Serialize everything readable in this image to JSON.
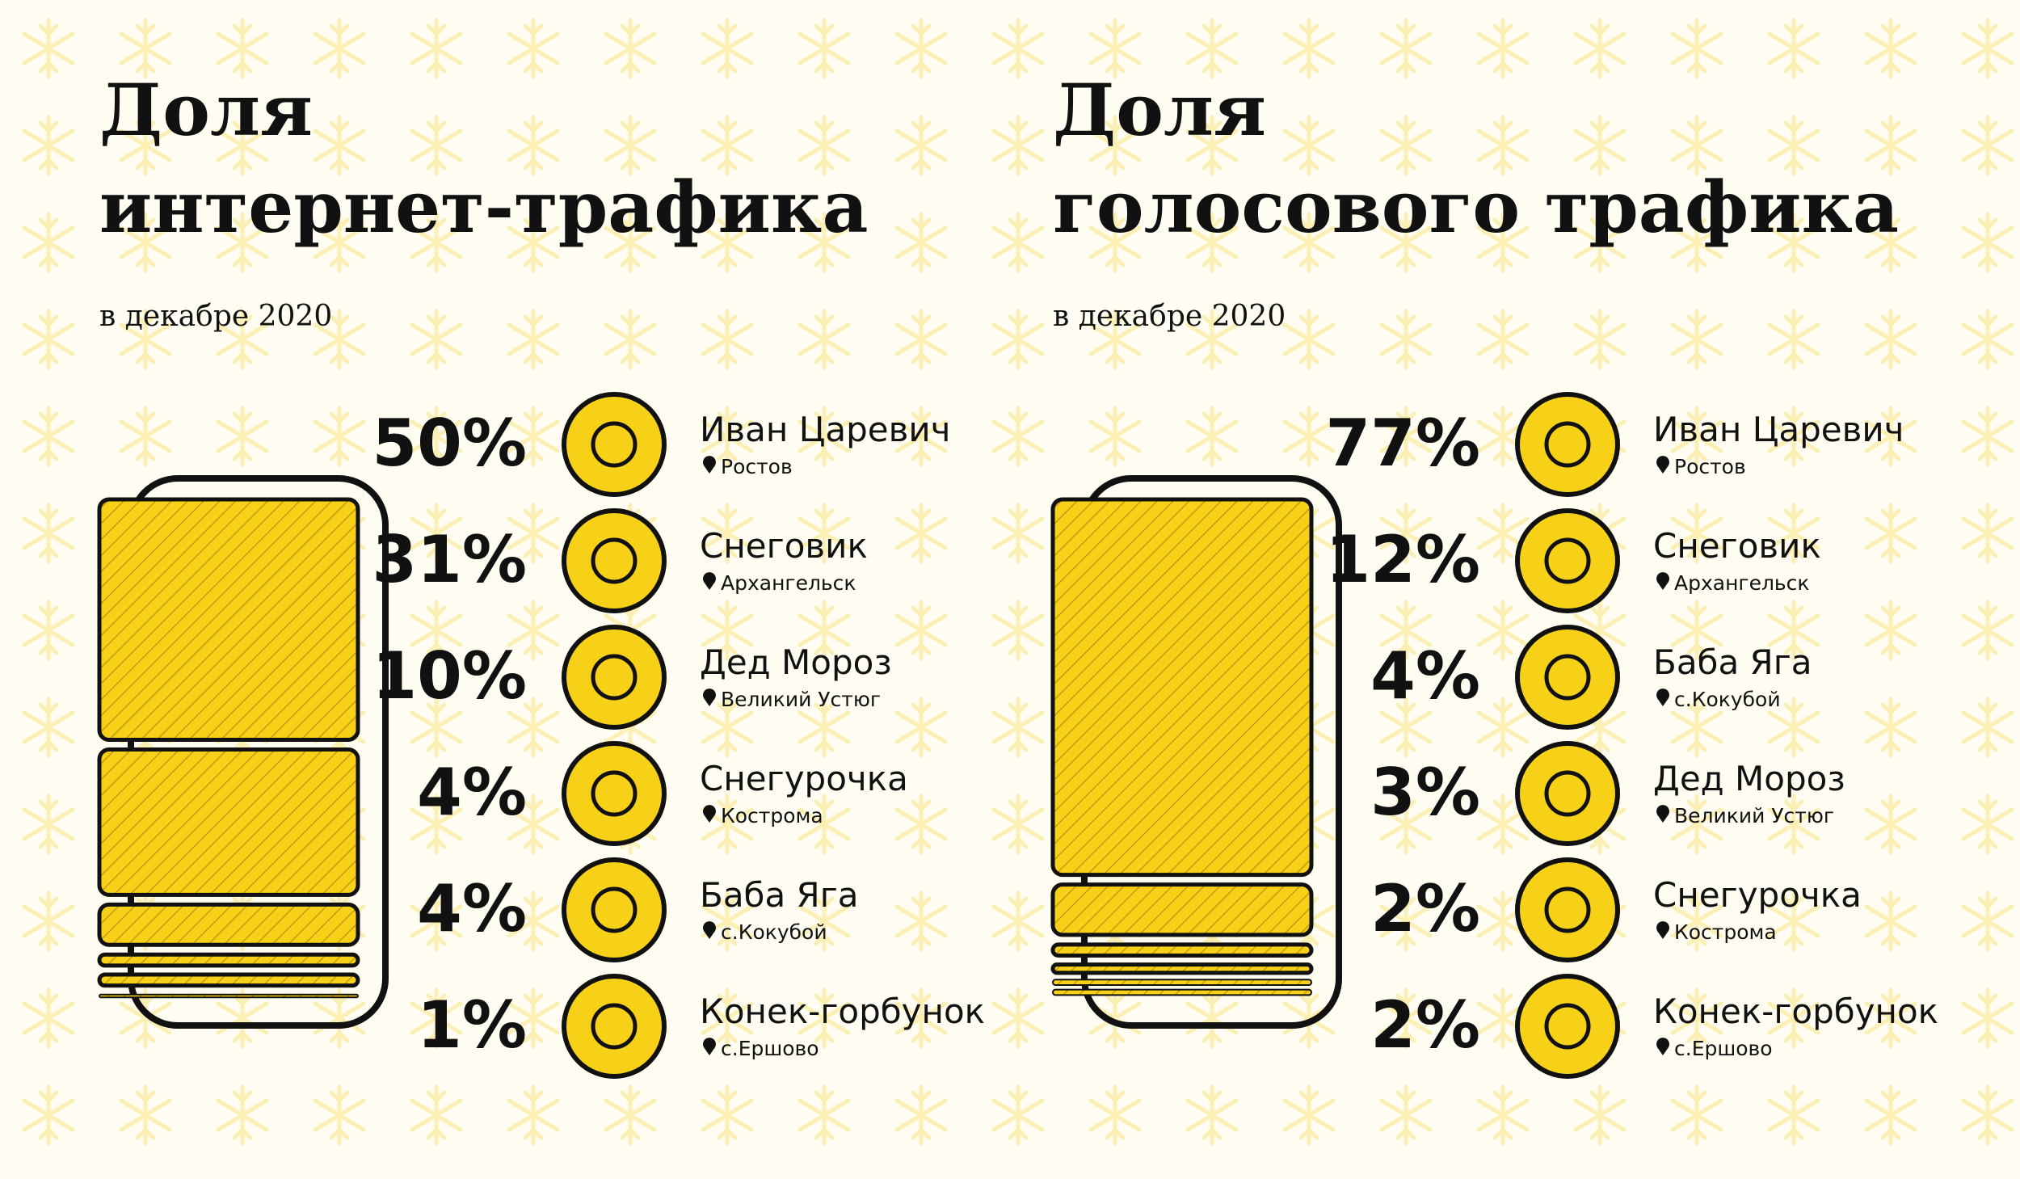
{
  "chart_data": [
    {
      "type": "stacked-bar",
      "title": [
        "Доля",
        "интернет-трафика"
      ],
      "subtitle": "в декабре 2020",
      "categories": [
        "Иван Царевич",
        "Снеговик",
        "Дед Мороз",
        "Снегурочка",
        "Баба Яга",
        "Конек-горбунок"
      ],
      "locations": [
        "Ростов",
        "Архангельск",
        "Великий Устюг",
        "Кострома",
        "с.Кокубой",
        "с.Ершово"
      ],
      "values": [
        50,
        31,
        10,
        4,
        4,
        1
      ],
      "value_labels": [
        "50%",
        "31%",
        "10%",
        "4%",
        "4%",
        "1%"
      ],
      "color": "#f7d117"
    },
    {
      "type": "stacked-bar",
      "title": [
        "Доля",
        "голосового трафика"
      ],
      "subtitle": "в декабре 2020",
      "categories": [
        "Иван Царевич",
        "Снеговик",
        "Баба Яга",
        "Дед Мороз",
        "Снегурочка",
        "Конек-горбунок"
      ],
      "locations": [
        "Ростов",
        "Архангельск",
        "с.Кокубой",
        "Великий Устюг",
        "Кострома",
        "с.Ершово"
      ],
      "values": [
        77,
        12,
        4,
        3,
        2,
        2
      ],
      "value_labels": [
        "77%",
        "12%",
        "4%",
        "3%",
        "2%",
        "2%"
      ],
      "color": "#f7d117"
    }
  ]
}
